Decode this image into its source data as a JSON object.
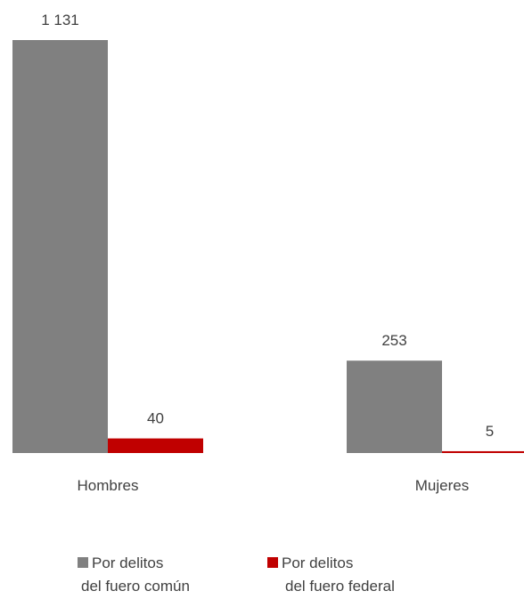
{
  "chart_data": {
    "type": "bar",
    "categories": [
      "Hombres",
      "Mujeres"
    ],
    "series": [
      {
        "name": "Por delitos del fuero común",
        "values": [
          1131,
          253
        ],
        "labels": [
          "1 131",
          "253"
        ],
        "color": "#808080"
      },
      {
        "name": "Por delitos del fuero federal",
        "values": [
          40,
          5
        ],
        "labels": [
          "40",
          "5"
        ],
        "color": "#c00000"
      }
    ],
    "ylim": [
      0,
      1131
    ],
    "grid": false,
    "legend_position": "bottom"
  },
  "legend": {
    "items": [
      {
        "line1": "Por delitos",
        "line2": "del fuero común",
        "color": "#808080"
      },
      {
        "line1": "Por delitos",
        "line2": "del fuero federal",
        "color": "#c00000"
      }
    ]
  }
}
